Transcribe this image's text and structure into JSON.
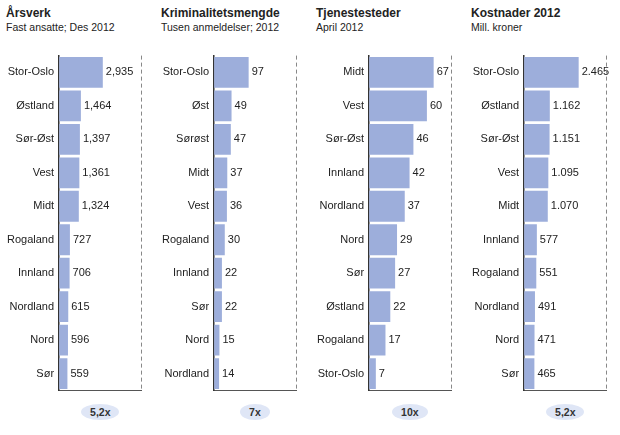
{
  "chart_data": [
    {
      "type": "bar",
      "orientation": "horizontal",
      "title": "Årsverk",
      "subtitle": "Fast ansatte; Des 2012",
      "categories": [
        "Stor-Oslo",
        "Østland",
        "Sør-Øst",
        "Vest",
        "Midt",
        "Rogaland",
        "Innland",
        "Nordland",
        "Nord",
        "Sør"
      ],
      "values": [
        2935,
        1464,
        1397,
        1361,
        1324,
        727,
        706,
        615,
        596,
        559
      ],
      "value_labels": [
        "2,935",
        "1,464",
        "1,397",
        "1,361",
        "1,324",
        "727",
        "706",
        "615",
        "596",
        "559"
      ],
      "xlim": [
        0,
        5500
      ],
      "xticks": [],
      "tick_labels": "y",
      "grid": false,
      "data_labels": true,
      "color": "#9daedb",
      "annotation": "5,2x"
    },
    {
      "type": "bar",
      "orientation": "horizontal",
      "title": "Kriminalitetsmengde",
      "subtitle": "Tusen anmeldelser; 2012",
      "categories": [
        "Stor-Oslo",
        "Øst",
        "Sørøst",
        "Midt",
        "Vest",
        "Rogaland",
        "Innland",
        "Sør",
        "Nord",
        "Nordland"
      ],
      "values": [
        97,
        49,
        47,
        37,
        36,
        30,
        22,
        22,
        15,
        14
      ],
      "xlim": [
        0,
        230
      ],
      "xticks": [],
      "tick_labels": "y",
      "grid": false,
      "data_labels": true,
      "color": "#9daedb",
      "annotation": "7x"
    },
    {
      "type": "bar",
      "orientation": "horizontal",
      "title": "Tjenestesteder",
      "subtitle": "April 2012",
      "categories": [
        "Midt",
        "Vest",
        "Sør-Øst",
        "Innland",
        "Nordland",
        "Nord",
        "Sør",
        "Østland",
        "Rogaland",
        "Stor-Oslo"
      ],
      "values": [
        67,
        60,
        46,
        42,
        37,
        29,
        27,
        22,
        17,
        7
      ],
      "xlim": [
        0,
        85
      ],
      "xticks": [],
      "tick_labels": "y",
      "grid": false,
      "data_labels": true,
      "color": "#9daedb",
      "annotation": "10x"
    },
    {
      "type": "bar",
      "orientation": "horizontal",
      "title": "Kostnader 2012",
      "subtitle": "Mill. kroner",
      "categories": [
        "Stor-Oslo",
        "Østland",
        "Sør-Øst",
        "Vest",
        "Midt",
        "Innland",
        "Rogaland",
        "Nordland",
        "Nord",
        "Sør"
      ],
      "values": [
        2465,
        1162,
        1151,
        1095,
        1070,
        577,
        551,
        491,
        471,
        465
      ],
      "value_labels": [
        "2.465",
        "1.162",
        "1.151",
        "1.095",
        "1.070",
        "577",
        "551",
        "491",
        "471",
        "465"
      ],
      "xlim": [
        0,
        3700
      ],
      "xticks": [],
      "tick_labels": "y",
      "grid": false,
      "data_labels": true,
      "color": "#9daedb",
      "annotation": "5,2x"
    }
  ]
}
